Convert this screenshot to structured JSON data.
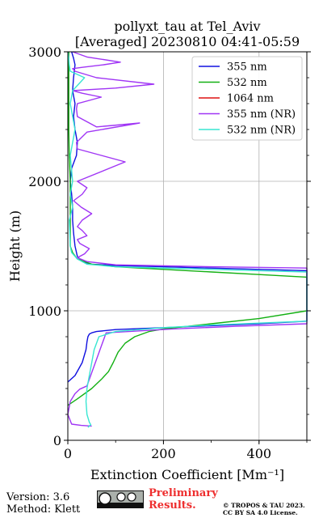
{
  "chart_data": {
    "type": "line",
    "title": "pollyxt_tau at Tel_Aviv",
    "subtitle": "[Averaged] 20230810 04:41-05:59",
    "xlabel": "Extinction Coefficient [Mm⁻¹]",
    "ylabel": "Height (m)",
    "xlim": [
      0,
      500
    ],
    "ylim": [
      0,
      3000
    ],
    "xticks": [
      "0",
      "200",
      "400"
    ],
    "yticks": [
      "0",
      "1000",
      "2000",
      "3000"
    ],
    "grid": true,
    "legend_position": "top-right",
    "series": [
      {
        "name": "355 nm",
        "color": "#1010e0",
        "x": [
          0,
          15,
          30,
          38,
          40,
          42,
          45,
          50,
          60,
          100,
          200,
          300,
          400,
          500,
          500,
          400,
          300,
          200,
          100,
          50,
          30,
          20,
          15,
          12,
          10,
          10,
          8,
          5,
          8,
          18,
          20,
          15,
          12,
          15,
          10,
          12,
          15,
          12,
          8
        ],
        "y": [
          450,
          500,
          600,
          700,
          760,
          800,
          820,
          830,
          840,
          855,
          870,
          885,
          900,
          920,
          1310,
          1320,
          1330,
          1340,
          1350,
          1360,
          1380,
          1420,
          1500,
          1600,
          1700,
          1800,
          1900,
          2000,
          2100,
          2200,
          2300,
          2400,
          2500,
          2600,
          2700,
          2800,
          2900,
          2950,
          3000
        ]
      },
      {
        "name": "532 nm",
        "color": "#12b012",
        "x": [
          0,
          20,
          50,
          70,
          85,
          95,
          105,
          120,
          140,
          170,
          200,
          300,
          400,
          500,
          500,
          400,
          300,
          200,
          100,
          50,
          20,
          10,
          5,
          5,
          5,
          3,
          2,
          2,
          2,
          2,
          2
        ],
        "y": [
          270,
          320,
          400,
          470,
          530,
          600,
          680,
          750,
          800,
          840,
          860,
          900,
          940,
          1000,
          1260,
          1280,
          1300,
          1320,
          1340,
          1360,
          1400,
          1450,
          1500,
          1800,
          2000,
          2200,
          2400,
          2600,
          2800,
          2900,
          3000
        ]
      },
      {
        "name": "1064 nm",
        "color": "#dd1111",
        "x": [],
        "y": []
      },
      {
        "name": "355 nm (NR)",
        "color": "#a035f5",
        "x": [
          50,
          28,
          8,
          0,
          5,
          15,
          25,
          40,
          80,
          150,
          220,
          350,
          500,
          500,
          300,
          100,
          40,
          20,
          35,
          45,
          25,
          20,
          40,
          30,
          20,
          30,
          50,
          28,
          12,
          30,
          40,
          20,
          120,
          70,
          20,
          18,
          40,
          150,
          60,
          20,
          18,
          20,
          70,
          30,
          10,
          100,
          180,
          60,
          15,
          10,
          30,
          75,
          110,
          40,
          10
        ],
        "y": [
          110,
          115,
          125,
          200,
          300,
          360,
          395,
          420,
          830,
          845,
          860,
          880,
          900,
          1330,
          1340,
          1355,
          1380,
          1410,
          1440,
          1480,
          1520,
          1550,
          1580,
          1620,
          1650,
          1700,
          1750,
          1800,
          1850,
          1900,
          1950,
          2000,
          2150,
          2200,
          2250,
          2300,
          2380,
          2450,
          2420,
          2500,
          2560,
          2600,
          2650,
          2680,
          2700,
          2720,
          2750,
          2800,
          2850,
          2870,
          2880,
          2900,
          2920,
          2960,
          3000
        ]
      },
      {
        "name": "532 nm (NR)",
        "color": "#38e6d2",
        "x": [
          42,
          48,
          45,
          40,
          38,
          40,
          45,
          50,
          55,
          65,
          100,
          200,
          300,
          400,
          500,
          500,
          400,
          300,
          200,
          100,
          40,
          20,
          8,
          5,
          3,
          10,
          5,
          10,
          5,
          15,
          5,
          10,
          35,
          5,
          3,
          2,
          0
        ],
        "y": [
          100,
          120,
          140,
          200,
          300,
          400,
          500,
          600,
          700,
          800,
          840,
          870,
          890,
          905,
          920,
          1300,
          1310,
          1320,
          1330,
          1340,
          1360,
          1400,
          1450,
          1500,
          1700,
          1800,
          1900,
          2000,
          2200,
          2400,
          2600,
          2700,
          2800,
          2850,
          2900,
          2950,
          3000
        ]
      }
    ]
  },
  "footer": {
    "version": "Version: 3.6",
    "method": "Method: Klett",
    "preliminary_line1": "Preliminary",
    "preliminary_line2": "Results.",
    "copyright_line1": "© TROPOS & TAU 2023.",
    "copyright_line2": "CC BY SA 4.0 License."
  },
  "license_badge": {
    "text": "cc  BY  SA"
  }
}
